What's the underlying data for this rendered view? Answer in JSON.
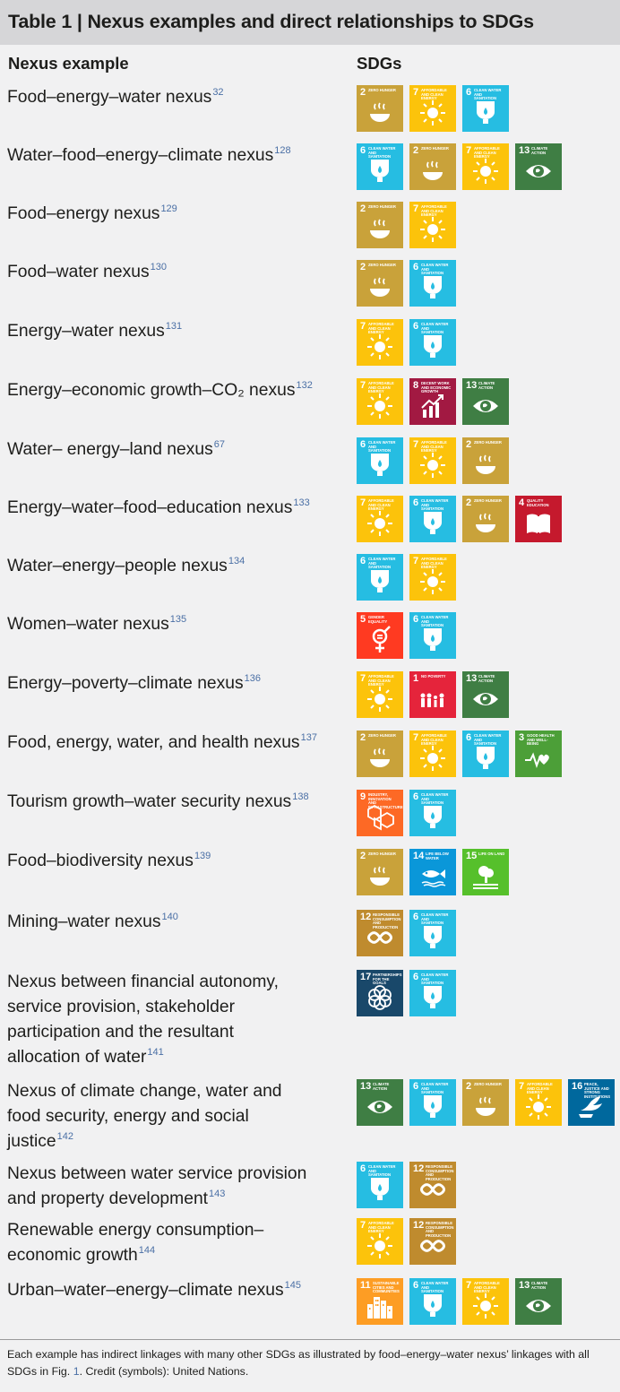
{
  "title": "Table 1 | Nexus examples and direct relationships to SDGs",
  "columns": {
    "nexus": "Nexus example",
    "sdgs": "SDGs"
  },
  "sdg_defs": {
    "1": {
      "num": "1",
      "label": "No Poverty",
      "color": "#e5243b",
      "icon": "people-icon"
    },
    "2": {
      "num": "2",
      "label": "Zero Hunger",
      "color": "#c9a23a",
      "icon": "bowl-icon"
    },
    "3": {
      "num": "3",
      "label": "Good Health and Well-Being",
      "color": "#4c9f38",
      "icon": "heartbeat-icon"
    },
    "4": {
      "num": "4",
      "label": "Quality Education",
      "color": "#c5192d",
      "icon": "book-icon"
    },
    "5": {
      "num": "5",
      "label": "Gender Equality",
      "color": "#ff3a21",
      "icon": "gender-icon"
    },
    "6": {
      "num": "6",
      "label": "Clean Water and Sanitation",
      "color": "#26bde2",
      "icon": "water-drop-icon"
    },
    "7": {
      "num": "7",
      "label": "Affordable and Clean Energy",
      "color": "#fcc30b",
      "icon": "sun-icon"
    },
    "8": {
      "num": "8",
      "label": "Decent Work and Economic Growth",
      "color": "#a21942",
      "icon": "growth-chart-icon"
    },
    "9": {
      "num": "9",
      "label": "Industry, Innovation and Infrastructure",
      "color": "#fd6925",
      "icon": "cubes-icon"
    },
    "12": {
      "num": "12",
      "label": "Responsible Consumption and Production",
      "color": "#bf8b2e",
      "icon": "infinity-icon"
    },
    "13": {
      "num": "13",
      "label": "Climate Action",
      "color": "#3f7e44",
      "icon": "eye-globe-icon"
    },
    "14": {
      "num": "14",
      "label": "Life Below Water",
      "color": "#0a97d9",
      "icon": "fish-icon"
    },
    "15": {
      "num": "15",
      "label": "Life on Land",
      "color": "#56c02b",
      "icon": "tree-icon"
    },
    "16": {
      "num": "16",
      "label": "Peace, Justice and Strong Institutions",
      "color": "#00689d",
      "icon": "dove-icon"
    },
    "17": {
      "num": "17",
      "label": "Partnerships for the Goals",
      "color": "#19486a",
      "icon": "rings-icon"
    },
    "11": {
      "num": "11",
      "label": "Sustainable Cities and Communities",
      "color": "#fd9d24",
      "icon": "city-icon"
    }
  },
  "rows": [
    {
      "lines": [
        "Food–energy–water nexus"
      ],
      "ref": "32",
      "sdgs": [
        "2",
        "7",
        "6"
      ]
    },
    {
      "lines": [
        "Water–food–energy–climate nexus"
      ],
      "ref": "128",
      "sdgs": [
        "6",
        "2",
        "7",
        "13"
      ]
    },
    {
      "lines": [
        "Food–energy nexus"
      ],
      "ref": "129",
      "sdgs": [
        "2",
        "7"
      ]
    },
    {
      "lines": [
        "Food–water nexus"
      ],
      "ref": "130",
      "sdgs": [
        "2",
        "6"
      ]
    },
    {
      "lines": [
        "Energy–water nexus"
      ],
      "ref": "131",
      "sdgs": [
        "7",
        "6"
      ]
    },
    {
      "lines": [
        "Energy–economic growth–CO₂ nexus"
      ],
      "ref": "132",
      "sdgs": [
        "7",
        "8",
        "13"
      ]
    },
    {
      "lines": [
        "Water– energy–land nexus"
      ],
      "ref": "67",
      "sdgs": [
        "6",
        "7",
        "2"
      ]
    },
    {
      "lines": [
        "Energy–water–food–education nexus"
      ],
      "ref": "133",
      "sdgs": [
        "7",
        "6",
        "2",
        "4"
      ]
    },
    {
      "lines": [
        "Water–energy–people nexus"
      ],
      "ref": "134",
      "sdgs": [
        "6",
        "7"
      ]
    },
    {
      "lines": [
        "Women–water nexus"
      ],
      "ref": "135",
      "sdgs": [
        "5",
        "6"
      ]
    },
    {
      "lines": [
        "Energy–poverty–climate nexus"
      ],
      "ref": "136",
      "sdgs": [
        "7",
        "1",
        "13"
      ]
    },
    {
      "lines": [
        "Food, energy, water, and health nexus"
      ],
      "ref": "137",
      "sdgs": [
        "2",
        "7",
        "6",
        "3"
      ]
    },
    {
      "lines": [
        "Tourism growth–water security nexus"
      ],
      "ref": "138",
      "sdgs": [
        "9",
        "6"
      ]
    },
    {
      "lines": [
        "Food–biodiversity nexus"
      ],
      "ref": "139",
      "sdgs": [
        "2",
        "14",
        "15"
      ]
    },
    {
      "lines": [
        "Mining–water nexus"
      ],
      "ref": "140",
      "sdgs": [
        "12",
        "6"
      ]
    },
    {
      "lines": [
        "Nexus between financial autonomy,",
        "service provision, stakeholder",
        "participation and the resultant",
        "allocation of water"
      ],
      "ref": "141",
      "sdgs": [
        "17",
        "6"
      ]
    },
    {
      "lines": [
        "Nexus of climate change, water and",
        "food security, energy and social",
        "justice"
      ],
      "ref": "142",
      "sdgs": [
        "13",
        "6",
        "2",
        "7",
        "16"
      ]
    },
    {
      "lines": [
        "Nexus between water service provision",
        "and property development"
      ],
      "ref": "143",
      "sdgs": [
        "6",
        "12"
      ]
    },
    {
      "lines": [
        "Renewable energy consumption–",
        "economic growth"
      ],
      "ref": "144",
      "sdgs": [
        "7",
        "12"
      ]
    },
    {
      "lines": [
        "Urban–water–energy–climate nexus"
      ],
      "ref": "145",
      "sdgs": [
        "11",
        "6",
        "7",
        "13"
      ]
    }
  ],
  "footer": {
    "text_before": "Each example has indirect linkages with many other SDGs as illustrated by food–energy–water nexus’ linkages with all SDGs in Fig. ",
    "fig_ref": "1",
    "text_after": ". Credit (symbols): United Nations."
  }
}
